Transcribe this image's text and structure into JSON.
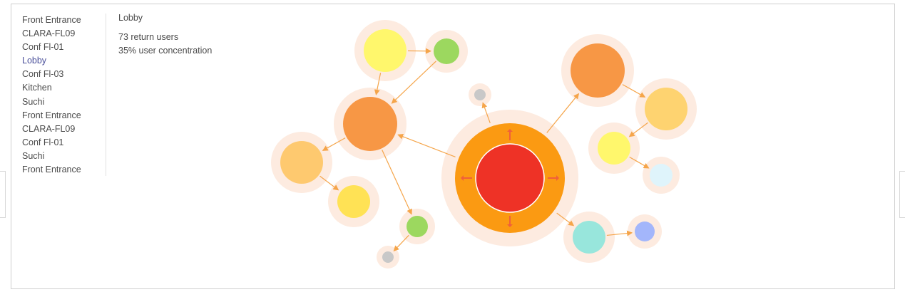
{
  "locations": [
    {
      "label": "Front Entrance",
      "active": false
    },
    {
      "label": "CLARA-FL09",
      "active": false
    },
    {
      "label": "Conf Fl-01",
      "active": false
    },
    {
      "label": "Lobby",
      "active": true
    },
    {
      "label": "Conf Fl-03",
      "active": false
    },
    {
      "label": "Kitchen",
      "active": false
    },
    {
      "label": "Suchi",
      "active": false
    },
    {
      "label": "Front Entrance",
      "active": false
    },
    {
      "label": "CLARA-FL09",
      "active": false
    },
    {
      "label": "Conf Fl-01",
      "active": false
    },
    {
      "label": "Suchi",
      "active": false
    },
    {
      "label": "Front Entrance",
      "active": false
    }
  ],
  "detail": {
    "title": "Lobby",
    "return_users": "73 return users",
    "concentration": "35% user concentration"
  },
  "colors": {
    "halo": "#fdebe0",
    "edge": "#f5a54a",
    "center_ring": "#fb9a12",
    "center_core": "#ee3226",
    "center_arrows": "#f0603a",
    "orange": "#f79745",
    "light_orange": "#fec96f",
    "pale_orange": "#fed370",
    "yellow": "#fff76c",
    "gold": "#ffe255",
    "green": "#9cd85f",
    "gray": "#c8c8c8",
    "teal": "#98e6dc",
    "periwinkle": "#a3b6fb",
    "ice": "#dff4fb"
  }
}
